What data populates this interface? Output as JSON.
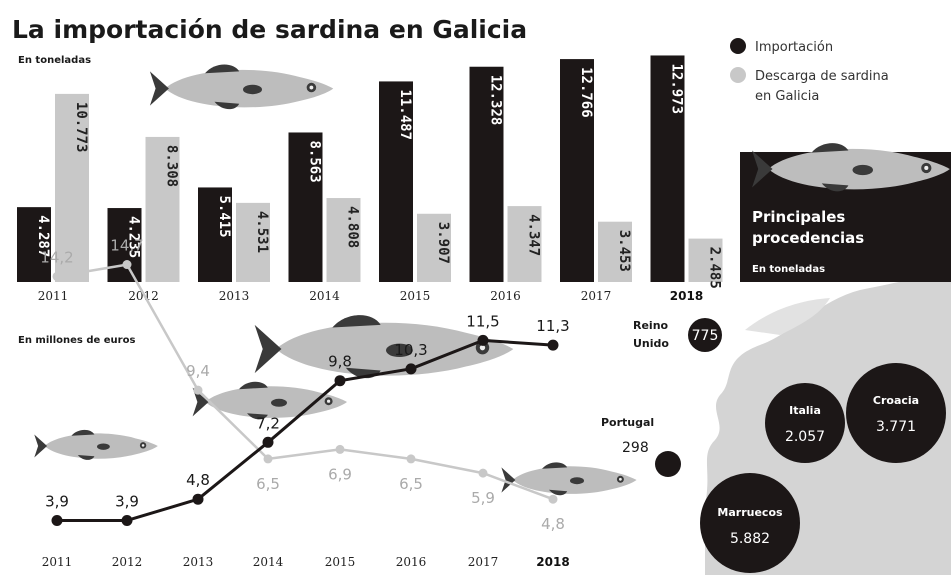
{
  "title": "La importación de sardina en Galicia",
  "legend": {
    "import": "Importación",
    "landing_line1": "Descarga de sardina",
    "landing_line2": "en Galicia"
  },
  "colors": {
    "import": "#1c1717",
    "landing": "#c8c8c8",
    "bg": "#ffffff"
  },
  "chart_data": [
    {
      "type": "bar",
      "subtitle": "En toneladas",
      "categories": [
        "2011",
        "2012",
        "2013",
        "2014",
        "2015",
        "2016",
        "2017",
        "2018"
      ],
      "bold_category": "2018",
      "series": [
        {
          "name": "Importación",
          "values": [
            4287,
            4235,
            5415,
            8563,
            11487,
            12328,
            12766,
            12973
          ],
          "labels": [
            "4.287",
            "4.235",
            "5.415",
            "8.563",
            "11.487",
            "12.328",
            "12.766",
            "12.973"
          ]
        },
        {
          "name": "Descarga de sardina en Galicia",
          "values": [
            10773,
            8308,
            4531,
            4808,
            3907,
            4347,
            3453,
            2485
          ],
          "labels": [
            "10.773",
            "8.308",
            "4.531",
            "4.808",
            "3.907",
            "4.347",
            "3.453",
            "2.485"
          ]
        }
      ],
      "ylim": [
        0,
        13000
      ]
    },
    {
      "type": "line",
      "subtitle": "En millones de euros",
      "categories": [
        "2011",
        "2012",
        "2013",
        "2014",
        "2015",
        "2016",
        "2017",
        "2018"
      ],
      "bold_category": "2018",
      "series": [
        {
          "name": "Importación",
          "values": [
            3.9,
            3.9,
            4.8,
            7.2,
            9.8,
            10.3,
            11.5,
            11.3
          ],
          "labels": [
            "3,9",
            "3,9",
            "4,8",
            "7,2",
            "9,8",
            "10,3",
            "11,5",
            "11,3"
          ]
        },
        {
          "name": "Descarga de sardina en Galicia",
          "values": [
            14.2,
            14.7,
            9.4,
            6.5,
            6.9,
            6.5,
            5.9,
            4.8
          ],
          "labels": [
            "14,2",
            "14,7",
            "9,4",
            "6,5",
            "6,9",
            "6,5",
            "5,9",
            "4,8"
          ]
        }
      ],
      "ylim": [
        3,
        15
      ]
    }
  ],
  "origins": {
    "title_line1": "Principales",
    "title_line2": "procedencias",
    "subtitle": "En toneladas",
    "countries": [
      {
        "name_line1": "Reino",
        "name_line2": "Unido",
        "value": 775,
        "label": "775"
      },
      {
        "name_line1": "Portugal",
        "name_line2": "",
        "value": 298,
        "label": "298"
      },
      {
        "name_line1": "Italia",
        "name_line2": "",
        "value": 2057,
        "label": "2.057"
      },
      {
        "name_line1": "Croacia",
        "name_line2": "",
        "value": 3771,
        "label": "3.771"
      },
      {
        "name_line1": "Marruecos",
        "name_line2": "",
        "value": 5882,
        "label": "5.882"
      }
    ]
  }
}
